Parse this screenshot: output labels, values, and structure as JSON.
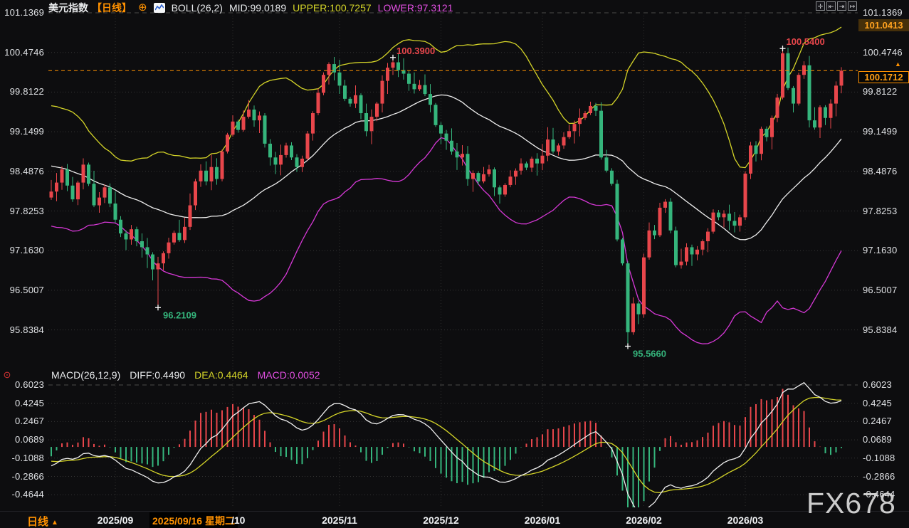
{
  "header": {
    "symbol": "美元指数",
    "period_tag": "【日线】",
    "add_icon": "⊕",
    "boll": "BOLL(26,2)",
    "mid": "MID:99.0189",
    "upper": "UPPER:100.7257",
    "lower": "LOWER:97.3121"
  },
  "toolbar": {
    "icons": [
      {
        "name": "pan-move-icon",
        "glyph": "✛"
      },
      {
        "name": "zoom-out-icon",
        "glyph": "⇤"
      },
      {
        "name": "zoom-in-icon",
        "glyph": "⇥"
      },
      {
        "name": "go-to-latest-icon",
        "glyph": "↦"
      }
    ]
  },
  "macd_legend": {
    "label": "MACD(26,12,9)",
    "diff": "DIFF:0.4490",
    "dea": "DEA:0.4464",
    "macd": "MACD:0.0052"
  },
  "bottom": {
    "period_label": "日线",
    "dropdown_icon": "▲",
    "crosshair_date": "2025/09/16 星期二",
    "partial_month_label": "/10"
  },
  "watermark": "FX678",
  "colors": {
    "up": "#e8464b",
    "down": "#35b57c",
    "boll_mid": "#eeeeee",
    "boll_upper": "#d4d428",
    "boll_lower": "#d638d6",
    "diff_line": "#f0f0f0",
    "dea_line": "#d4d428",
    "accent_orange": "#ff9100",
    "high_label_text": "#e8464b",
    "low_label_text": "#35b57c"
  },
  "chart_data": {
    "type": "candlestick_with_macd",
    "title": "美元指数 日线 BOLL(26,2) + MACD(26,12,9)",
    "y_axis_ticks": [
      101.1369,
      100.4746,
      99.8122,
      99.1499,
      98.4876,
      97.8253,
      97.163,
      96.5007,
      95.8384
    ],
    "macd_axis_ticks": [
      0.6023,
      0.4245,
      0.2467,
      0.0689,
      -0.1088,
      -0.2866,
      -0.4644
    ],
    "x_ticks": [
      {
        "label": "2025/09",
        "index": 12,
        "visible": true
      },
      {
        "label": "2025/10",
        "index": 34,
        "visible": false
      },
      {
        "label": "2025/11",
        "index": 54,
        "visible": true
      },
      {
        "label": "2025/12",
        "index": 73,
        "visible": true
      },
      {
        "label": "2026/01",
        "index": 92,
        "visible": true
      },
      {
        "label": "2026/02",
        "index": 111,
        "visible": true
      },
      {
        "label": "2026/03",
        "index": 130,
        "visible": true
      }
    ],
    "closes": [
      98.15,
      98.3,
      98.52,
      98.25,
      98.02,
      98.3,
      98.6,
      98.28,
      97.92,
      98.05,
      98.22,
      97.95,
      97.68,
      97.45,
      97.35,
      97.52,
      97.32,
      97.22,
      97.1,
      96.85,
      96.95,
      97.12,
      97.3,
      97.46,
      97.34,
      97.56,
      97.92,
      98.32,
      98.5,
      98.32,
      98.56,
      98.36,
      98.82,
      99.1,
      99.32,
      99.18,
      99.4,
      99.52,
      99.34,
      99.42,
      98.95,
      98.72,
      98.6,
      98.76,
      98.92,
      98.72,
      98.56,
      98.7,
      99.12,
      99.46,
      99.8,
      100.1,
      100.28,
      100.14,
      99.92,
      99.7,
      99.62,
      99.76,
      99.46,
      99.16,
      99.4,
      99.62,
      100.0,
      100.22,
      100.31,
      100.18,
      100.12,
      99.95,
      99.86,
      99.93,
      99.78,
      99.6,
      99.26,
      99.12,
      99.0,
      98.82,
      98.72,
      98.78,
      98.36,
      98.46,
      98.32,
      98.44,
      98.52,
      98.22,
      98.1,
      98.26,
      98.4,
      98.5,
      98.62,
      98.55,
      98.7,
      98.62,
      98.75,
      99.02,
      98.82,
      98.92,
      99.06,
      99.16,
      99.28,
      99.38,
      99.46,
      99.58,
      99.5,
      98.72,
      98.5,
      98.28,
      97.35,
      96.95,
      95.8,
      96.28,
      96.1,
      97.05,
      97.5,
      97.42,
      97.88,
      97.98,
      97.5,
      96.92,
      96.98,
      97.22,
      97.1,
      97.18,
      97.32,
      97.48,
      97.8,
      97.72,
      97.78,
      97.66,
      97.58,
      97.72,
      98.45,
      98.92,
      98.78,
      99.2,
      99.06,
      99.38,
      99.72,
      100.46,
      99.88,
      99.62,
      100.1,
      100.26,
      99.34,
      99.22,
      99.56,
      99.38,
      99.62,
      99.92,
      100.17
    ],
    "extremes": [
      {
        "type": "low",
        "index": 20,
        "value": 96.2109
      },
      {
        "type": "high",
        "index": 64,
        "value": 100.39
      },
      {
        "type": "low",
        "index": 108,
        "value": 95.566
      },
      {
        "type": "high",
        "index": 137,
        "value": 100.54
      }
    ],
    "last_price": 100.1712,
    "boll_upper_latest": 101.0413,
    "indicators": {
      "boll_period": 26,
      "boll_mult": 2,
      "macd_fast": 12,
      "macd_slow": 26,
      "macd_signal": 9
    }
  }
}
